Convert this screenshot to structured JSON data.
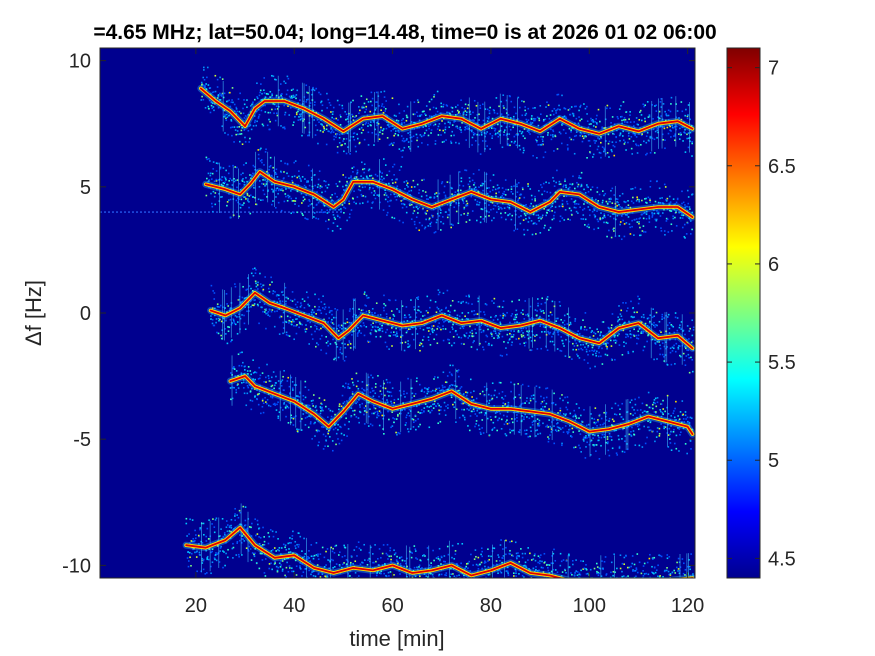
{
  "chart_data": {
    "type": "heatmap",
    "title": "=4.65 MHz;  lat=50.04; long=14.48, time=0 is at 2026 01 02 06:00",
    "xlabel": "time [min]",
    "ylabel": "Δf [Hz]",
    "xlim": [
      0.5,
      121.5
    ],
    "ylim": [
      -10.5,
      10.5
    ],
    "xticks": [
      "20",
      "40",
      "60",
      "80",
      "100",
      "120"
    ],
    "yticks": [
      "10",
      "5",
      "0",
      "-5",
      "-10"
    ],
    "colorbar": {
      "range": [
        4.4,
        7.1
      ],
      "ticks": [
        "7",
        "6.5",
        "6",
        "5.5",
        "5",
        "4.5"
      ],
      "colormap": "jet"
    },
    "background_color": "#00008f",
    "horizontal_artifact": {
      "y": 4.0,
      "x_range": [
        0.5,
        50
      ]
    },
    "traces": [
      {
        "name": "",
        "x_start": 21,
        "x_end": 121,
        "points": [
          [
            21,
            8.9
          ],
          [
            24,
            8.4
          ],
          [
            27,
            8.0
          ],
          [
            30,
            7.4
          ],
          [
            32,
            8.1
          ],
          [
            34,
            8.4
          ],
          [
            38,
            8.4
          ],
          [
            42,
            8.1
          ],
          [
            46,
            7.7
          ],
          [
            50,
            7.2
          ],
          [
            54,
            7.7
          ],
          [
            58,
            7.8
          ],
          [
            62,
            7.3
          ],
          [
            66,
            7.5
          ],
          [
            70,
            7.8
          ],
          [
            74,
            7.7
          ],
          [
            78,
            7.3
          ],
          [
            82,
            7.7
          ],
          [
            86,
            7.5
          ],
          [
            90,
            7.2
          ],
          [
            94,
            7.7
          ],
          [
            98,
            7.3
          ],
          [
            102,
            7.1
          ],
          [
            106,
            7.4
          ],
          [
            110,
            7.2
          ],
          [
            114,
            7.5
          ],
          [
            118,
            7.6
          ],
          [
            121,
            7.3
          ]
        ]
      },
      {
        "name": "",
        "x_start": 22,
        "x_end": 121,
        "points": [
          [
            22,
            5.1
          ],
          [
            26,
            4.9
          ],
          [
            29,
            4.7
          ],
          [
            31,
            5.1
          ],
          [
            33,
            5.6
          ],
          [
            36,
            5.2
          ],
          [
            40,
            5.0
          ],
          [
            44,
            4.7
          ],
          [
            48,
            4.2
          ],
          [
            50,
            4.5
          ],
          [
            52,
            5.2
          ],
          [
            56,
            5.2
          ],
          [
            60,
            4.9
          ],
          [
            64,
            4.5
          ],
          [
            68,
            4.2
          ],
          [
            72,
            4.5
          ],
          [
            76,
            4.8
          ],
          [
            80,
            4.5
          ],
          [
            84,
            4.4
          ],
          [
            88,
            4.0
          ],
          [
            92,
            4.4
          ],
          [
            94,
            4.8
          ],
          [
            98,
            4.7
          ],
          [
            102,
            4.2
          ],
          [
            106,
            4.0
          ],
          [
            110,
            4.1
          ],
          [
            114,
            4.2
          ],
          [
            118,
            4.2
          ],
          [
            121,
            3.8
          ]
        ]
      },
      {
        "name": "",
        "x_start": 23,
        "x_end": 121,
        "points": [
          [
            23,
            0.1
          ],
          [
            26,
            -0.1
          ],
          [
            29,
            0.2
          ],
          [
            32,
            0.8
          ],
          [
            35,
            0.4
          ],
          [
            38,
            0.2
          ],
          [
            42,
            -0.1
          ],
          [
            46,
            -0.4
          ],
          [
            49,
            -1.0
          ],
          [
            51,
            -0.7
          ],
          [
            54,
            -0.1
          ],
          [
            58,
            -0.3
          ],
          [
            62,
            -0.5
          ],
          [
            66,
            -0.4
          ],
          [
            70,
            -0.1
          ],
          [
            74,
            -0.4
          ],
          [
            78,
            -0.3
          ],
          [
            82,
            -0.6
          ],
          [
            86,
            -0.5
          ],
          [
            90,
            -0.3
          ],
          [
            94,
            -0.6
          ],
          [
            98,
            -1.0
          ],
          [
            102,
            -1.2
          ],
          [
            106,
            -0.6
          ],
          [
            110,
            -0.4
          ],
          [
            114,
            -1.0
          ],
          [
            118,
            -0.9
          ],
          [
            121,
            -1.4
          ]
        ]
      },
      {
        "name": "",
        "x_start": 27,
        "x_end": 121,
        "points": [
          [
            27,
            -2.7
          ],
          [
            30,
            -2.5
          ],
          [
            32,
            -2.9
          ],
          [
            36,
            -3.2
          ],
          [
            40,
            -3.5
          ],
          [
            44,
            -4.0
          ],
          [
            47,
            -4.5
          ],
          [
            50,
            -3.9
          ],
          [
            53,
            -3.2
          ],
          [
            56,
            -3.5
          ],
          [
            60,
            -3.8
          ],
          [
            64,
            -3.6
          ],
          [
            68,
            -3.4
          ],
          [
            72,
            -3.1
          ],
          [
            76,
            -3.6
          ],
          [
            80,
            -3.8
          ],
          [
            84,
            -3.8
          ],
          [
            88,
            -3.9
          ],
          [
            92,
            -4.0
          ],
          [
            96,
            -4.3
          ],
          [
            100,
            -4.7
          ],
          [
            104,
            -4.6
          ],
          [
            108,
            -4.4
          ],
          [
            112,
            -4.1
          ],
          [
            116,
            -4.3
          ],
          [
            120,
            -4.5
          ],
          [
            121,
            -4.8
          ]
        ]
      },
      {
        "name": "",
        "x_start": 18,
        "x_end": 121,
        "points": [
          [
            18,
            -9.2
          ],
          [
            22,
            -9.3
          ],
          [
            26,
            -9.0
          ],
          [
            29,
            -8.5
          ],
          [
            32,
            -9.2
          ],
          [
            36,
            -9.7
          ],
          [
            40,
            -9.6
          ],
          [
            44,
            -10.1
          ],
          [
            48,
            -10.3
          ],
          [
            52,
            -10.1
          ],
          [
            56,
            -10.2
          ],
          [
            60,
            -10.0
          ],
          [
            64,
            -10.3
          ],
          [
            68,
            -10.2
          ],
          [
            72,
            -10.0
          ],
          [
            76,
            -10.4
          ],
          [
            80,
            -10.2
          ],
          [
            84,
            -9.9
          ],
          [
            88,
            -10.3
          ],
          [
            92,
            -10.4
          ],
          [
            96,
            -10.6
          ],
          [
            100,
            -10.6
          ],
          [
            104,
            -10.6
          ],
          [
            108,
            -10.6
          ],
          [
            112,
            -10.6
          ],
          [
            116,
            -10.6
          ],
          [
            121,
            -10.5
          ]
        ]
      }
    ]
  }
}
